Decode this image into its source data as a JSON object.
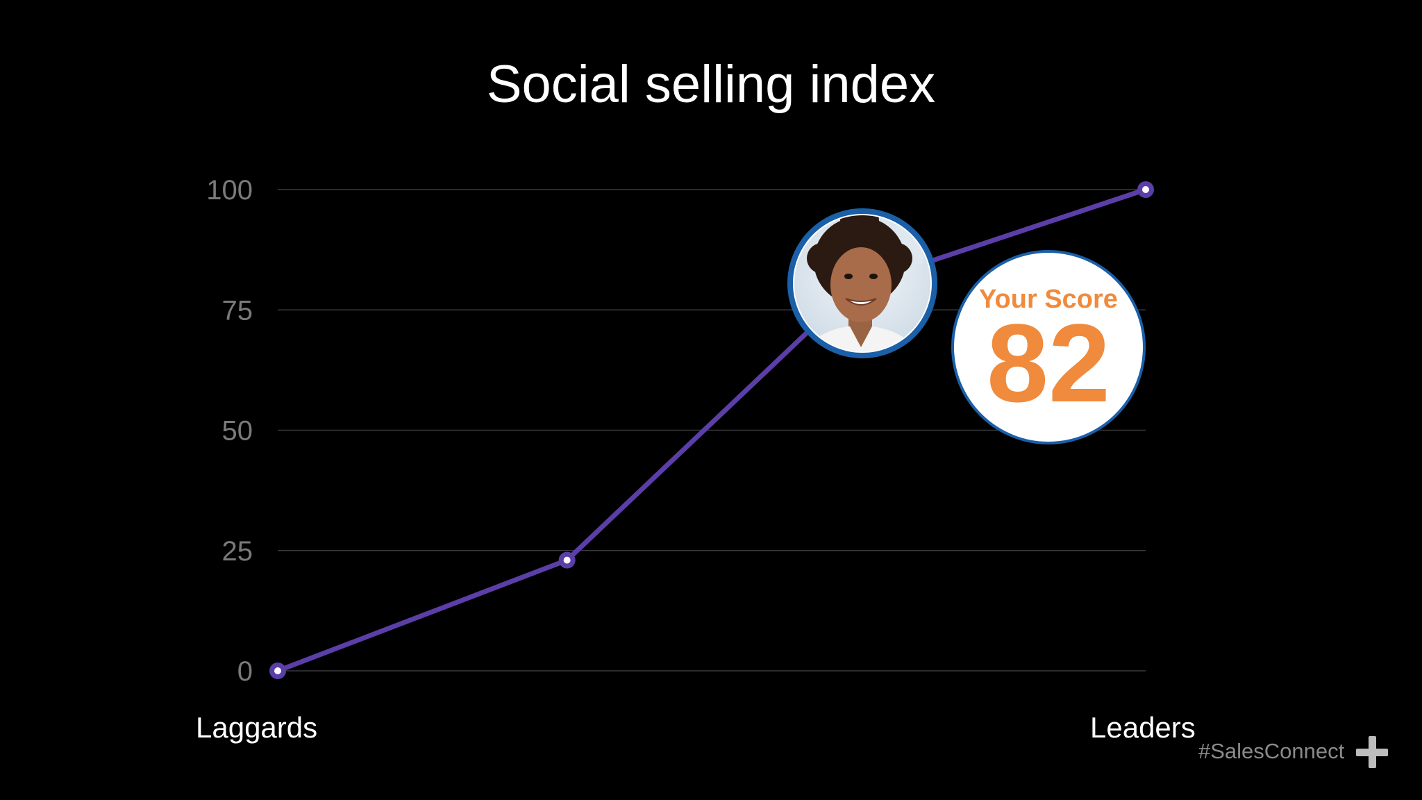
{
  "chart_data": {
    "type": "line",
    "title": "Social selling index",
    "categories": [
      "Laggards",
      "",
      "",
      "Leaders"
    ],
    "x": [
      0,
      1,
      2,
      3
    ],
    "series": [
      {
        "values": [
          0,
          23,
          80,
          100
        ]
      }
    ],
    "yticks": [
      "0",
      "25",
      "50",
      "75",
      "100"
    ],
    "ylim": [
      0,
      100
    ],
    "grid": true,
    "annotation": {
      "label": "Your Score",
      "value": "82",
      "label_color": "#f08a3c",
      "ring_color": "#1a5fa8"
    },
    "colors": {
      "line": "#5b3ea8",
      "grid": "#3a3a3a",
      "tick": "#7a7a7a"
    }
  },
  "footer": {
    "hashtag": "#SalesConnect"
  },
  "icons": {
    "plus": "plus-icon",
    "avatar": "person-avatar-icon"
  }
}
